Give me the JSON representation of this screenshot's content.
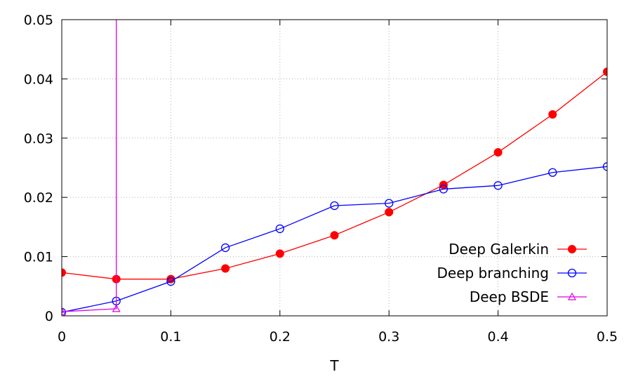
{
  "chart_data": {
    "type": "line",
    "title": "",
    "xlabel": "T",
    "ylabel": "",
    "xlim": [
      0,
      0.5
    ],
    "ylim": [
      0,
      0.05
    ],
    "xticks": [
      0,
      0.1,
      0.2,
      0.3,
      0.4,
      0.5
    ],
    "xtick_labels": [
      "0",
      "0.1",
      "0.2",
      "0.3",
      "0.4",
      "0.5"
    ],
    "yticks": [
      0,
      0.01,
      0.02,
      0.03,
      0.04,
      0.05
    ],
    "ytick_labels": [
      "0",
      "0.01",
      "0.02",
      "0.03",
      "0.04",
      "0.05"
    ],
    "grid": true,
    "legend_position": "bottom-right",
    "series": [
      {
        "name": "Deep Galerkin",
        "color": "#ff0000",
        "marker": "filled-circle",
        "x": [
          0,
          0.05,
          0.1,
          0.15,
          0.2,
          0.25,
          0.3,
          0.35,
          0.4,
          0.45,
          0.5
        ],
        "y": [
          0.0073,
          0.0062,
          0.0062,
          0.008,
          0.0105,
          0.0136,
          0.0175,
          0.0221,
          0.0276,
          0.034,
          0.0412
        ]
      },
      {
        "name": "Deep branching",
        "color": "#0000ff",
        "marker": "open-circle",
        "x": [
          0,
          0.05,
          0.1,
          0.15,
          0.2,
          0.25,
          0.3,
          0.35,
          0.4,
          0.45,
          0.5
        ],
        "y": [
          0.0006,
          0.0025,
          0.0058,
          0.0115,
          0.0147,
          0.0186,
          0.019,
          0.0214,
          0.022,
          0.0242,
          0.0252
        ]
      },
      {
        "name": "Deep BSDE",
        "color": "#e000e0",
        "marker": "open-triangle",
        "x": [
          0,
          0.05,
          0.05
        ],
        "y": [
          0.0007,
          0.0012,
          0.06
        ],
        "marker_indices": [
          0,
          1
        ]
      }
    ]
  }
}
